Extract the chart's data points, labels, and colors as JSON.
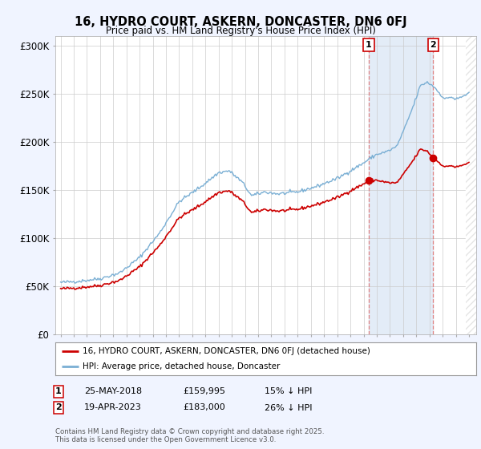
{
  "title": "16, HYDRO COURT, ASKERN, DONCASTER, DN6 0FJ",
  "subtitle": "Price paid vs. HM Land Registry's House Price Index (HPI)",
  "bg_color": "#f0f4ff",
  "plot_bg_color": "#ffffff",
  "hpi_color": "#7aafd4",
  "price_color": "#cc0000",
  "annotation1_date": "25-MAY-2018",
  "annotation1_price": 159995,
  "annotation1_text": "15% ↓ HPI",
  "annotation2_date": "19-APR-2023",
  "annotation2_price": 183000,
  "annotation2_text": "26% ↓ HPI",
  "legend_label1": "16, HYDRO COURT, ASKERN, DONCASTER, DN6 0FJ (detached house)",
  "legend_label2": "HPI: Average price, detached house, Doncaster",
  "footer": "Contains HM Land Registry data © Crown copyright and database right 2025.\nThis data is licensed under the Open Government Licence v3.0.",
  "ylim": [
    0,
    310000
  ],
  "yticks": [
    0,
    50000,
    100000,
    150000,
    200000,
    250000,
    300000
  ],
  "ytick_labels": [
    "£0",
    "£50K",
    "£100K",
    "£150K",
    "£200K",
    "£250K",
    "£300K"
  ],
  "xstart_year": 1995,
  "xend_year": 2026,
  "sale1_t": 2018.388,
  "sale1_p": 159995,
  "sale2_t": 2023.294,
  "sale2_p": 183000
}
